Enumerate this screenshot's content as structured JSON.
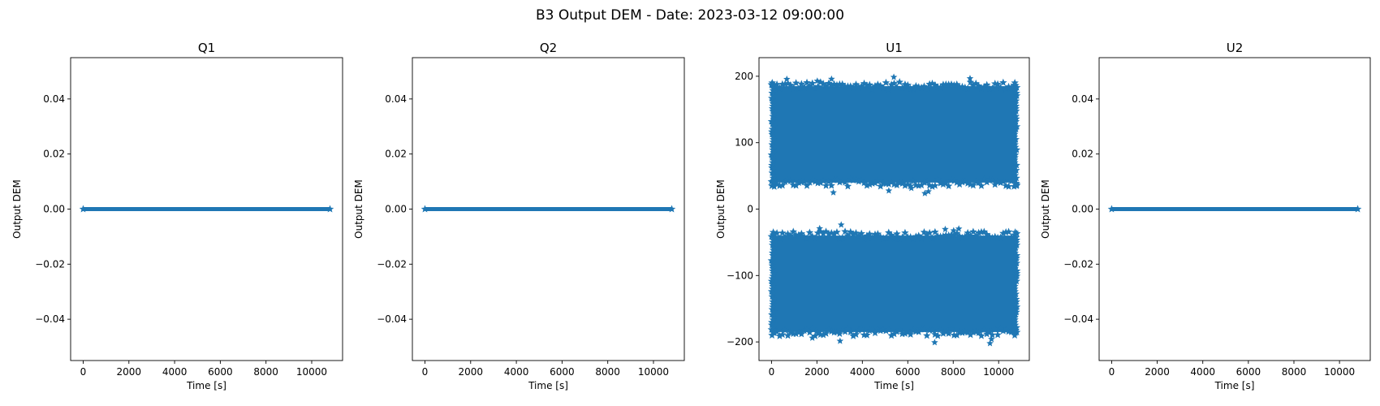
{
  "suptitle": "B3 Output DEM - Date: 2023-03-12 09:00:00",
  "chart_data": [
    {
      "type": "scatter",
      "title": "Q1",
      "xlabel": "Time [s]",
      "ylabel": "Output DEM",
      "xlim": [
        -550,
        11350
      ],
      "ylim": [
        -0.055,
        0.055
      ],
      "xticks": [
        0,
        2000,
        4000,
        6000,
        8000,
        10000
      ],
      "xtick_labels": [
        "0",
        "2000",
        "4000",
        "6000",
        "8000",
        "10000"
      ],
      "yticks": [
        -0.04,
        -0.02,
        0.0,
        0.02,
        0.04
      ],
      "ytick_labels": [
        "−0.04",
        "−0.02",
        "0.00",
        "0.02",
        "0.04"
      ],
      "marker": "star",
      "color": "#1f77b4",
      "series": [
        {
          "x_range": [
            0,
            10800
          ],
          "y_min": 0,
          "y_max": 0
        }
      ]
    },
    {
      "type": "scatter",
      "title": "Q2",
      "xlabel": "Time [s]",
      "ylabel": "Output DEM",
      "xlim": [
        -550,
        11350
      ],
      "ylim": [
        -0.055,
        0.055
      ],
      "xticks": [
        0,
        2000,
        4000,
        6000,
        8000,
        10000
      ],
      "xtick_labels": [
        "0",
        "2000",
        "4000",
        "6000",
        "8000",
        "10000"
      ],
      "yticks": [
        -0.04,
        -0.02,
        0.0,
        0.02,
        0.04
      ],
      "ytick_labels": [
        "−0.04",
        "−0.02",
        "0.00",
        "0.02",
        "0.04"
      ],
      "marker": "star",
      "color": "#1f77b4",
      "series": [
        {
          "x_range": [
            0,
            10800
          ],
          "y_min": 0,
          "y_max": 0
        }
      ]
    },
    {
      "type": "scatter",
      "title": "U1",
      "xlabel": "Time [s]",
      "ylabel": "Output DEM",
      "xlim": [
        -550,
        11350
      ],
      "ylim": [
        -228,
        228
      ],
      "xticks": [
        0,
        2000,
        4000,
        6000,
        8000,
        10000
      ],
      "xtick_labels": [
        "0",
        "2000",
        "4000",
        "6000",
        "8000",
        "10000"
      ],
      "yticks": [
        -200,
        -100,
        0,
        100,
        200
      ],
      "ytick_labels": [
        "−200",
        "−100",
        "0",
        "100",
        "200"
      ],
      "marker": "star",
      "color": "#1f77b4",
      "series": [
        {
          "x_range": [
            0,
            10800
          ],
          "y_min": 35,
          "y_max": 190
        },
        {
          "x_range": [
            0,
            10800
          ],
          "y_min": -190,
          "y_max": -35
        }
      ]
    },
    {
      "type": "scatter",
      "title": "U2",
      "xlabel": "Time [s]",
      "ylabel": "Output DEM",
      "xlim": [
        -550,
        11350
      ],
      "ylim": [
        -0.055,
        0.055
      ],
      "xticks": [
        0,
        2000,
        4000,
        6000,
        8000,
        10000
      ],
      "xtick_labels": [
        "0",
        "2000",
        "4000",
        "6000",
        "8000",
        "10000"
      ],
      "yticks": [
        -0.04,
        -0.02,
        0.0,
        0.02,
        0.04
      ],
      "ytick_labels": [
        "−0.04",
        "−0.02",
        "0.00",
        "0.02",
        "0.04"
      ],
      "marker": "star",
      "color": "#1f77b4",
      "series": [
        {
          "x_range": [
            0,
            10800
          ],
          "y_min": 0,
          "y_max": 0
        }
      ]
    }
  ]
}
